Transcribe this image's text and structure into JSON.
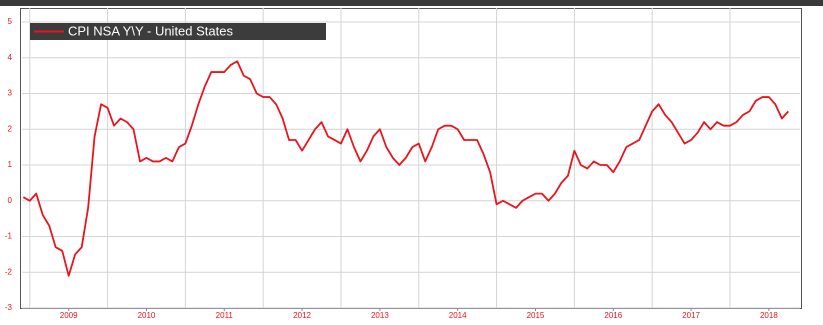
{
  "chart_data": {
    "type": "line",
    "x": [
      2008.917,
      2009.0,
      2009.083,
      2009.167,
      2009.25,
      2009.333,
      2009.417,
      2009.5,
      2009.583,
      2009.667,
      2009.75,
      2009.833,
      2009.917,
      2010.0,
      2010.083,
      2010.167,
      2010.25,
      2010.333,
      2010.417,
      2010.5,
      2010.583,
      2010.667,
      2010.75,
      2010.833,
      2010.917,
      2011.0,
      2011.083,
      2011.167,
      2011.25,
      2011.333,
      2011.417,
      2011.5,
      2011.583,
      2011.667,
      2011.75,
      2011.833,
      2011.917,
      2012.0,
      2012.083,
      2012.167,
      2012.25,
      2012.333,
      2012.417,
      2012.5,
      2012.583,
      2012.667,
      2012.75,
      2012.833,
      2012.917,
      2013.0,
      2013.083,
      2013.167,
      2013.25,
      2013.333,
      2013.417,
      2013.5,
      2013.583,
      2013.667,
      2013.75,
      2013.833,
      2013.917,
      2014.0,
      2014.083,
      2014.167,
      2014.25,
      2014.333,
      2014.417,
      2014.5,
      2014.583,
      2014.667,
      2014.75,
      2014.833,
      2014.917,
      2015.0,
      2015.083,
      2015.167,
      2015.25,
      2015.333,
      2015.417,
      2015.5,
      2015.583,
      2015.667,
      2015.75,
      2015.833,
      2015.917,
      2016.0,
      2016.083,
      2016.167,
      2016.25,
      2016.333,
      2016.417,
      2016.5,
      2016.583,
      2016.667,
      2016.75,
      2016.833,
      2016.917,
      2017.0,
      2017.083,
      2017.167,
      2017.25,
      2017.333,
      2017.417,
      2017.5,
      2017.583,
      2017.667,
      2017.75,
      2017.833,
      2017.917,
      2018.0,
      2018.083,
      2018.167,
      2018.25,
      2018.333,
      2018.417,
      2018.5,
      2018.583,
      2018.667,
      2018.75
    ],
    "series": [
      {
        "name": "CPI NSA Y\\Y - United States",
        "color": "#e8141e",
        "values": [
          0.1,
          0.0,
          0.2,
          -0.4,
          -0.7,
          -1.3,
          -1.4,
          -2.1,
          -1.5,
          -1.3,
          -0.2,
          1.8,
          2.7,
          2.6,
          2.1,
          2.3,
          2.2,
          2.0,
          1.1,
          1.2,
          1.1,
          1.1,
          1.2,
          1.1,
          1.5,
          1.6,
          2.1,
          2.7,
          3.2,
          3.6,
          3.6,
          3.6,
          3.8,
          3.9,
          3.5,
          3.4,
          3.0,
          2.9,
          2.9,
          2.7,
          2.3,
          1.7,
          1.7,
          1.4,
          1.7,
          2.0,
          2.2,
          1.8,
          1.7,
          1.6,
          2.0,
          1.5,
          1.1,
          1.4,
          1.8,
          2.0,
          1.5,
          1.2,
          1.0,
          1.2,
          1.5,
          1.6,
          1.1,
          1.5,
          2.0,
          2.1,
          2.1,
          2.0,
          1.7,
          1.7,
          1.7,
          1.3,
          0.8,
          -0.1,
          0.0,
          -0.1,
          -0.2,
          0.0,
          0.1,
          0.2,
          0.2,
          0.0,
          0.2,
          0.5,
          0.7,
          1.4,
          1.0,
          0.9,
          1.1,
          1.0,
          1.0,
          0.8,
          1.1,
          1.5,
          1.6,
          1.7,
          2.1,
          2.5,
          2.7,
          2.4,
          2.2,
          1.9,
          1.6,
          1.7,
          1.9,
          2.2,
          2.0,
          2.2,
          2.1,
          2.1,
          2.2,
          2.4,
          2.5,
          2.8,
          2.9,
          2.9,
          2.7,
          2.3,
          2.5
        ]
      }
    ],
    "xlim": [
      2008.9,
      2018.9
    ],
    "xticks": [
      {
        "value": 2009.5,
        "label": "2009"
      },
      {
        "value": 2010.5,
        "label": "2010"
      },
      {
        "value": 2011.5,
        "label": "2011"
      },
      {
        "value": 2012.5,
        "label": "2012"
      },
      {
        "value": 2013.5,
        "label": "2013"
      },
      {
        "value": 2014.5,
        "label": "2014"
      },
      {
        "value": 2015.5,
        "label": "2015"
      },
      {
        "value": 2016.5,
        "label": "2016"
      },
      {
        "value": 2017.5,
        "label": "2017"
      },
      {
        "value": 2018.5,
        "label": "2018"
      }
    ],
    "xgrid": [
      2009,
      2010,
      2011,
      2012,
      2013,
      2014,
      2015,
      2016,
      2017,
      2018
    ],
    "ylim": [
      -3,
      5
    ],
    "yticks": [
      -3,
      -2,
      -1,
      0,
      1,
      2,
      3,
      4,
      5
    ],
    "grid": true,
    "legend": "top-left"
  }
}
